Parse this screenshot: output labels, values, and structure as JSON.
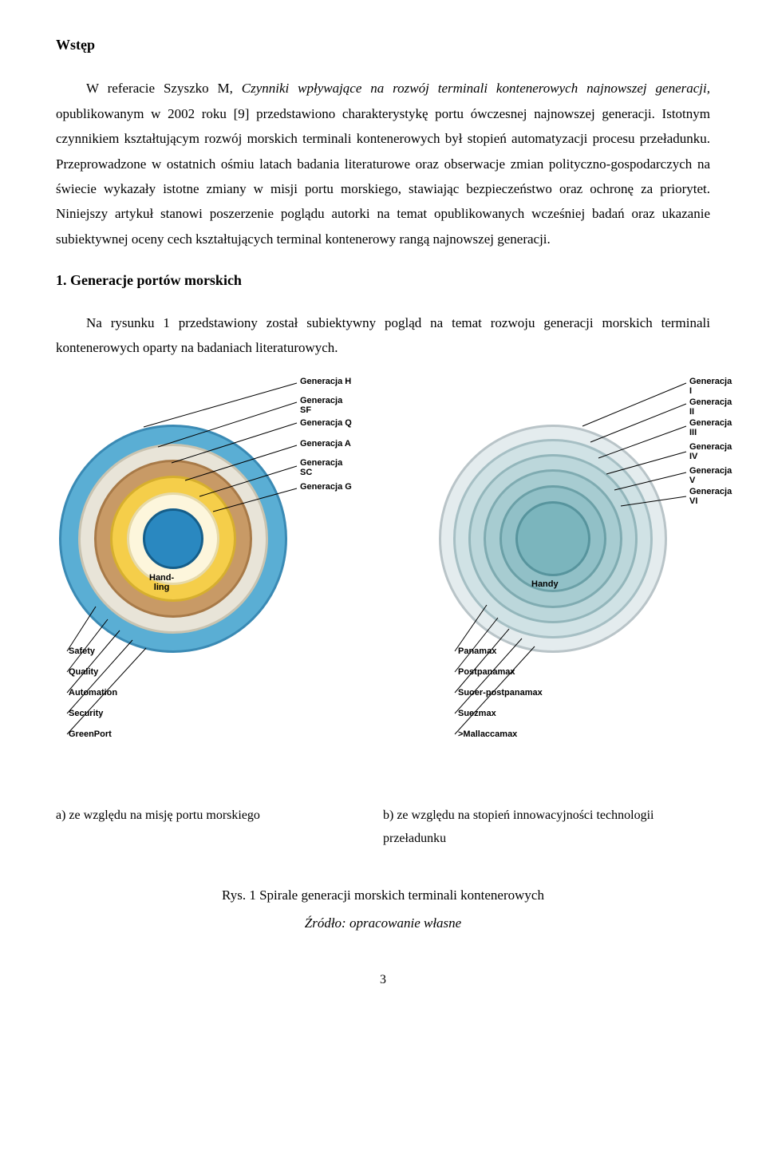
{
  "heading_intro": "Wstęp",
  "para1_pre": "W referacie Szyszko M, ",
  "para1_ital": "Czynniki wpływające na rozwój terminali kontenerowych najnowszej generacji,",
  "para1_post": " opublikowanym w 2002 roku [9] przedstawiono charakterystykę portu ówczesnej najnowszej generacji. Istotnym czynnikiem kształtującym rozwój morskich terminali kontenerowych był stopień automatyzacji procesu przeładunku. Przeprowadzone w ostatnich ośmiu latach badania literaturowe oraz obserwacje zmian polityczno-gospodarczych na świecie wykazały istotne zmiany w misji portu morskiego, stawiając bezpieczeństwo oraz ochronę za priorytet. Niniejszy artykuł stanowi poszerzenie poglądu autorki na temat opublikowanych wcześniej badań oraz ukazanie subiektywnej oceny cech kształtujących terminal kontenerowy rangą najnowszej generacji.",
  "heading_section1": "1.   Generacje portów morskich",
  "para2": "Na rysunku 1 przedstawiony został subiektywny pogląd na temat rozwoju generacji morskich terminali kontenerowych oparty na badaniach literaturowych.",
  "diag_a": {
    "ring_colors": {
      "r1": {
        "fill": "#5aaed4",
        "stroke": "#3a8ab4"
      },
      "r2": {
        "fill": "#e8e4d8",
        "stroke": "#c9c3b0"
      },
      "r3": {
        "fill": "#c89a66",
        "stroke": "#a87a48"
      },
      "r4": {
        "fill": "#f5ce4a",
        "stroke": "#d6af2e"
      },
      "r5": {
        "fill": "#fdf6dc",
        "stroke": "#e6d9a8"
      },
      "r6": {
        "fill": "#2a88c0",
        "stroke": "#155e8a"
      }
    },
    "center_label": "Hand-\nling",
    "top_labels": [
      "Generacja H",
      "Generacja\nSF",
      "Generacja Q",
      "Generacja A",
      "Generacja\nSC",
      "Generacja G"
    ],
    "bottom_labels": [
      "Safety",
      "Quality",
      "Automation",
      "Security",
      "GreenPort"
    ]
  },
  "diag_b": {
    "ring_colors": {
      "r1": {
        "fill": "#e4ecee",
        "stroke": "#b9c4c8"
      },
      "r2": {
        "fill": "#d0e2e5",
        "stroke": "#a6bfc4"
      },
      "r3": {
        "fill": "#bcd7db",
        "stroke": "#93b6bb"
      },
      "r4": {
        "fill": "#a7ccd1",
        "stroke": "#7fabb1"
      },
      "r5": {
        "fill": "#91c0c7",
        "stroke": "#6ba0a7"
      },
      "r6": {
        "fill": "#7bb5bd",
        "stroke": "#57949d"
      }
    },
    "center_label": "Handy",
    "top_labels": [
      "Generacja I",
      "Generacja II",
      "Generacja\nIII",
      "Generacja\nIV",
      "Generacja V",
      "Generacja\nVI"
    ],
    "bottom_labels": [
      "Panamax",
      "Postpanamax",
      "Suoer-postpanamax",
      "Suezmax",
      ">Mallaccamax"
    ]
  },
  "caption_a": "a)    ze względu na misję portu morskiego",
  "caption_b": "b)    ze względu na stopień innowacyjności technologii przeładunku",
  "fig_title": "Rys. 1 Spirale generacji morskich terminali kontenerowych",
  "fig_source": "Źródło: opracowanie własne",
  "page_number": "3"
}
